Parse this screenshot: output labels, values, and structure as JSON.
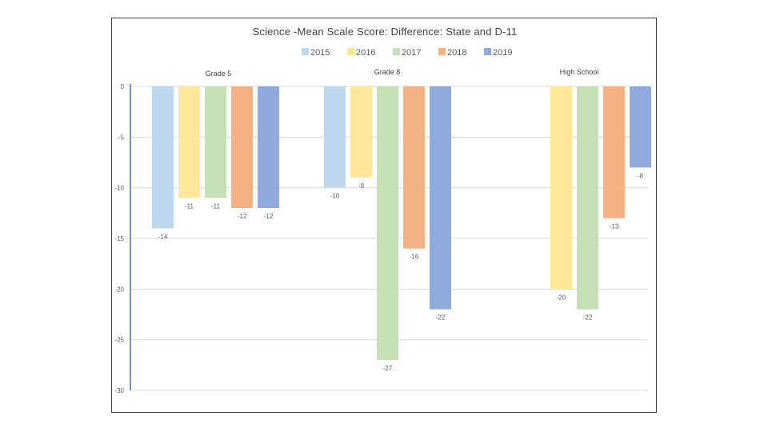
{
  "chart_data": {
    "type": "bar",
    "title": "Science -Mean Scale Score:  Difference: State and D-11",
    "xlabel": "",
    "ylabel": "",
    "ylim": [
      -30,
      0
    ],
    "yticks": [
      0,
      -5,
      -10,
      -15,
      -20,
      -25,
      -30
    ],
    "grid": true,
    "legend_position": "top",
    "categories": [
      "Grade 5",
      "Grade 8",
      "High School"
    ],
    "series": [
      {
        "name": "2015",
        "color": "#bdd7ee",
        "values": [
          -14,
          -10,
          null
        ]
      },
      {
        "name": "2016",
        "color": "#ffe699",
        "values": [
          -11,
          -9,
          -20
        ]
      },
      {
        "name": "2017",
        "color": "#c5e0b4",
        "values": [
          -11,
          -27,
          -22
        ]
      },
      {
        "name": "2018",
        "color": "#f4b183",
        "values": [
          -12,
          -16,
          -13
        ]
      },
      {
        "name": "2019",
        "color": "#8faadc",
        "values": [
          -12,
          -22,
          -8
        ]
      }
    ]
  }
}
